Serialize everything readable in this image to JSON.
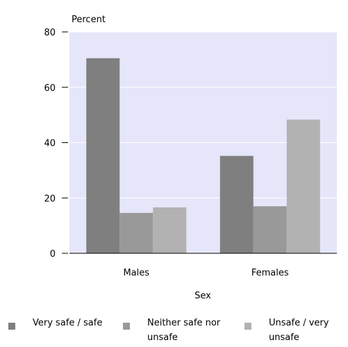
{
  "chart_data": {
    "type": "bar",
    "title": "",
    "ylabel": "Percent",
    "xlabel": "Sex",
    "ylim": [
      0,
      80
    ],
    "yticks": [
      0,
      20,
      40,
      60,
      80
    ],
    "categories": [
      "Males",
      "Females"
    ],
    "series": [
      {
        "name": "Very safe / safe",
        "values": [
          70.5,
          35.2
        ],
        "color": "#7f7f7f"
      },
      {
        "name": "Neither safe nor unsafe",
        "values": [
          14.6,
          17.0
        ],
        "color": "#999999"
      },
      {
        "name": "Unsafe / very unsafe",
        "values": [
          16.6,
          48.3
        ],
        "color": "#b2b2b2"
      }
    ],
    "plot_background": "#e6e6fa",
    "grid": true,
    "grid_color": "#ffffff",
    "legend_position": "bottom"
  }
}
